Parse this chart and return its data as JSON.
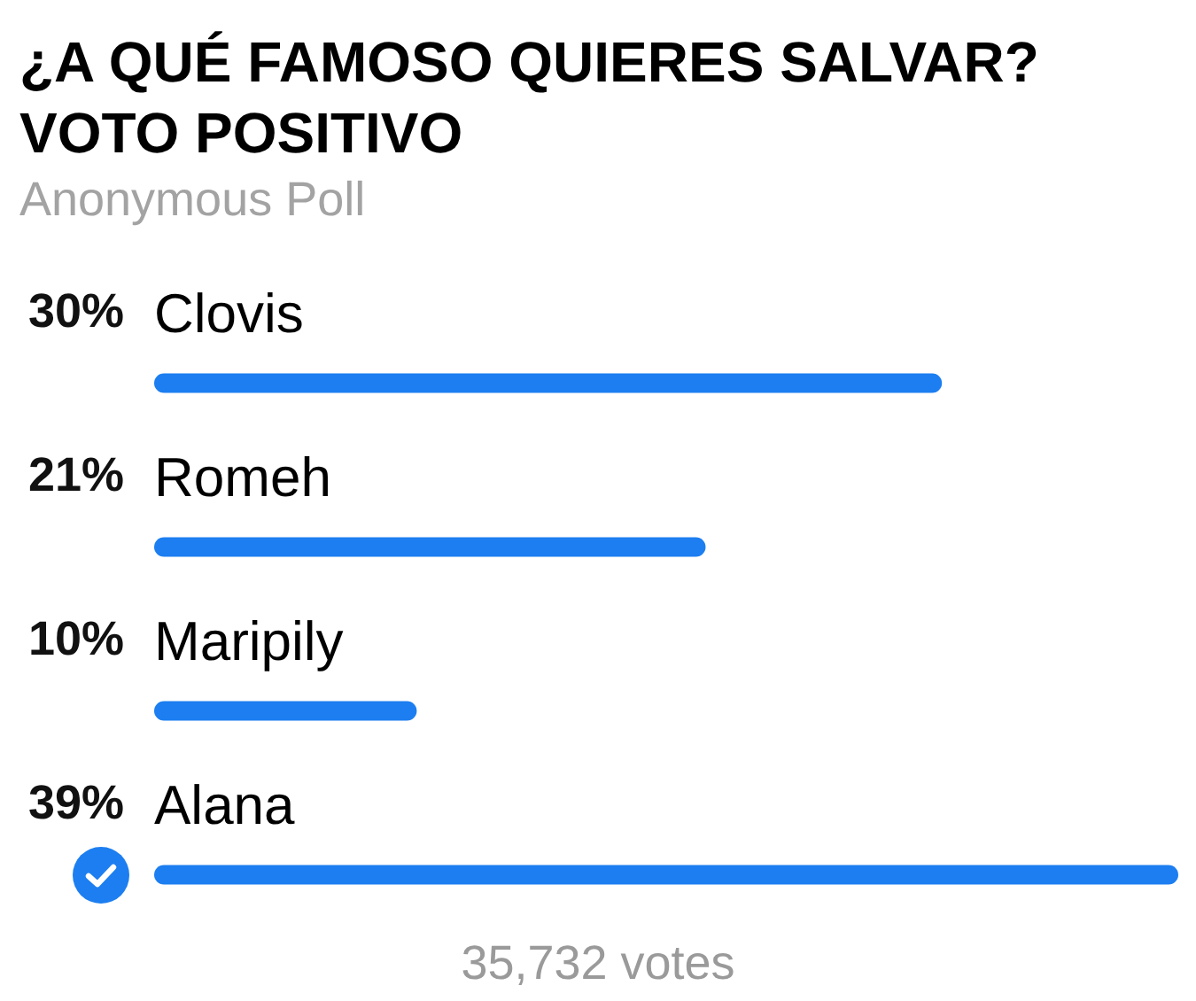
{
  "chart_data": {
    "type": "bar",
    "orientation": "horizontal",
    "title": "¿A QUÉ FAMOSO QUIERES SALVAR? VOTO POSITIVO",
    "subtitle": "Anonymous Poll",
    "categories": [
      "Clovis",
      "Romeh",
      "Maripily",
      "Alana"
    ],
    "values": [
      30,
      21,
      10,
      39
    ],
    "value_labels": [
      "30%",
      "21%",
      "10%",
      "39%"
    ],
    "color": "#1c7ef0",
    "annotations": [
      "35,732 votes"
    ]
  }
}
